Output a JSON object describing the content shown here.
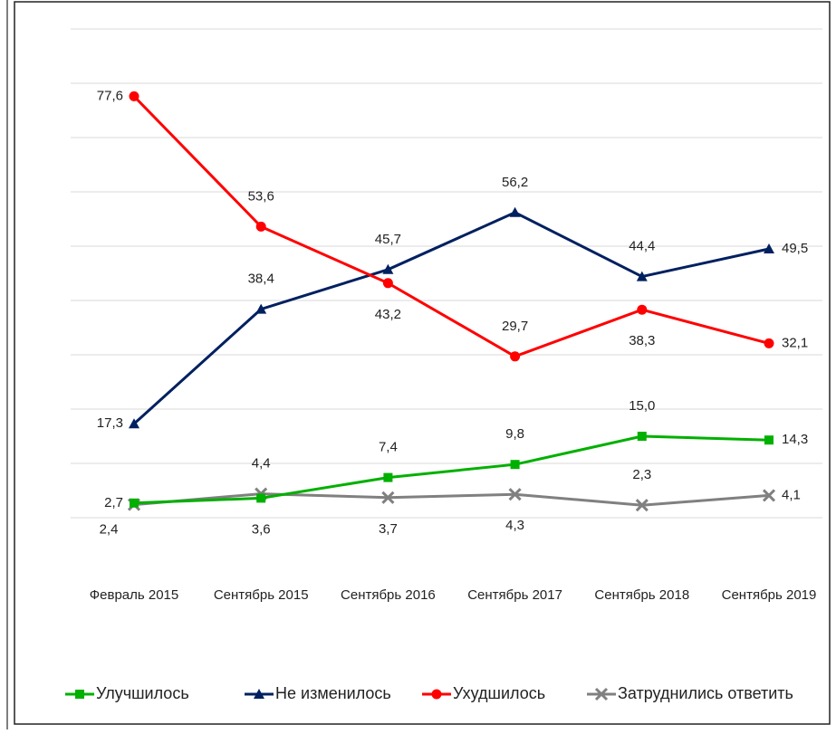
{
  "chart_data": {
    "type": "line",
    "categories": [
      "Февраль 2015",
      "Сентябрь 2015",
      "Сентябрь 2016",
      "Сентябрь 2017",
      "Сентябрь 2018",
      "Сентябрь 2019"
    ],
    "series": [
      {
        "name": "Улучшилось",
        "color": "#00b000",
        "marker": "square",
        "values": [
          2.7,
          3.6,
          7.4,
          9.8,
          15.0,
          14.3
        ],
        "value_labels": [
          "2,7",
          "3,6",
          "7,4",
          "9,8",
          "15,0",
          "14,3"
        ]
      },
      {
        "name": "Не изменилось",
        "color": "#002060",
        "marker": "triangle",
        "values": [
          17.3,
          38.4,
          45.7,
          56.2,
          44.4,
          49.5
        ],
        "value_labels": [
          "17,3",
          "38,4",
          "45,7",
          "56,2",
          "44,4",
          "49,5"
        ]
      },
      {
        "name": "Ухудшилось",
        "color": "#ff0000",
        "marker": "circle",
        "values": [
          77.6,
          53.6,
          43.2,
          29.7,
          38.3,
          32.1
        ],
        "value_labels": [
          "77,6",
          "53,6",
          "43,2",
          "29,7",
          "38,3",
          "32,1"
        ]
      },
      {
        "name": "Затруднились ответить",
        "color": "#808080",
        "marker": "x",
        "values": [
          2.4,
          4.4,
          3.7,
          4.3,
          2.3,
          4.1
        ],
        "value_labels": [
          "2,4",
          "4,4",
          "3,7",
          "4,3",
          "2,3",
          "4,1"
        ]
      }
    ],
    "ylim": [
      0,
      90
    ],
    "yticks": [
      0,
      10,
      20,
      30,
      40,
      50,
      60,
      70,
      80,
      90
    ],
    "grid": true,
    "legend": "bottom"
  }
}
